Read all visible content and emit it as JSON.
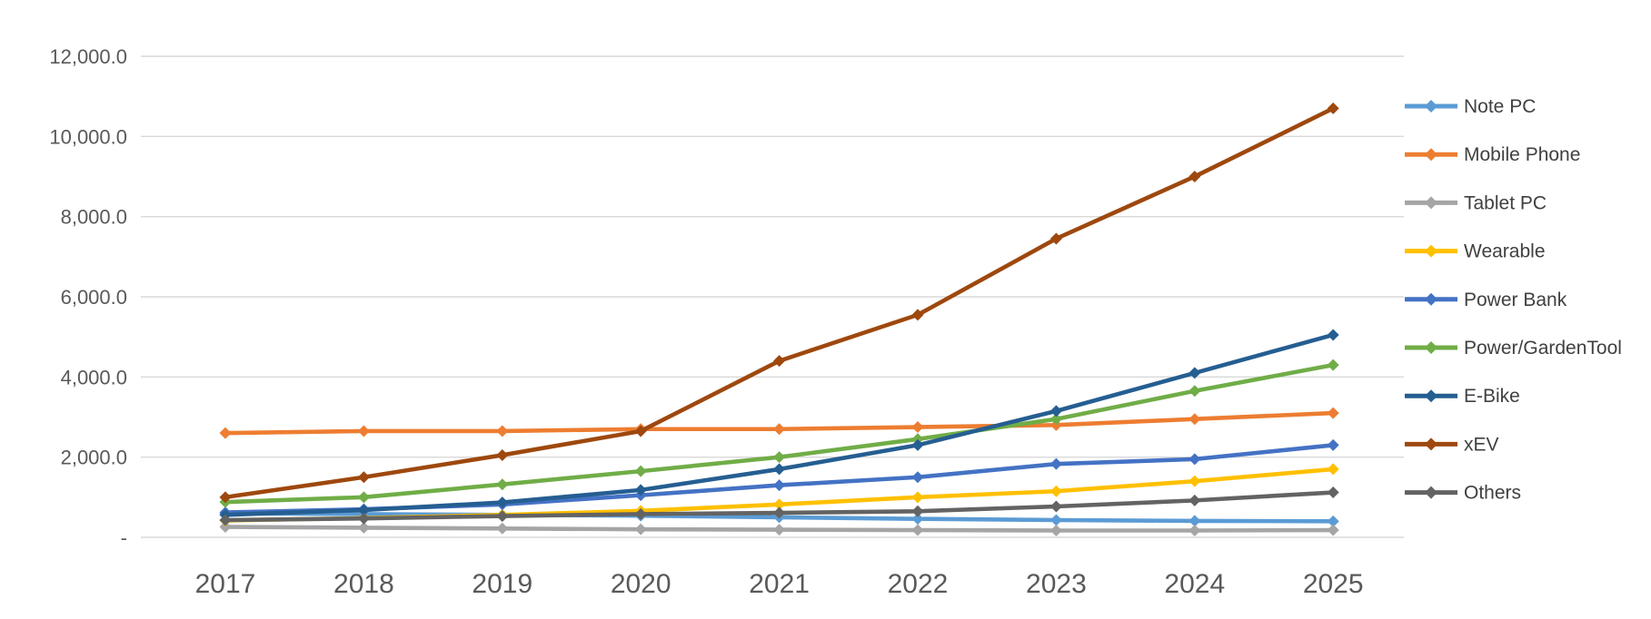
{
  "chart_data": {
    "type": "line",
    "title": "",
    "categories": [
      "2017",
      "2018",
      "2019",
      "2020",
      "2021",
      "2022",
      "2023",
      "2024",
      "2025"
    ],
    "series": [
      {
        "name": "Note PC",
        "color": "#5B9BD5",
        "values": [
          600,
          580,
          560,
          540,
          500,
          460,
          430,
          410,
          400
        ]
      },
      {
        "name": "Mobile Phone",
        "color": "#ED7D31",
        "values": [
          2600,
          2650,
          2650,
          2700,
          2700,
          2750,
          2800,
          2950,
          3100
        ]
      },
      {
        "name": "Tablet PC",
        "color": "#A5A5A5",
        "values": [
          260,
          240,
          220,
          200,
          190,
          180,
          170,
          170,
          180
        ]
      },
      {
        "name": "Wearable",
        "color": "#FFC000",
        "values": [
          420,
          480,
          560,
          660,
          820,
          1000,
          1150,
          1400,
          1700
        ]
      },
      {
        "name": "Power Bank",
        "color": "#4472C4",
        "values": [
          620,
          700,
          820,
          1050,
          1300,
          1500,
          1830,
          1950,
          2300
        ]
      },
      {
        "name": "Power/GardenTool",
        "color": "#70AD47",
        "values": [
          880,
          1000,
          1320,
          1650,
          2000,
          2450,
          2950,
          3650,
          4300
        ]
      },
      {
        "name": "E-Bike",
        "color": "#255E91",
        "values": [
          560,
          680,
          870,
          1180,
          1700,
          2300,
          3150,
          4100,
          5050
        ]
      },
      {
        "name": "xEV",
        "color": "#9E480E",
        "values": [
          1000,
          1500,
          2050,
          2650,
          4400,
          5550,
          7450,
          9000,
          10700
        ]
      },
      {
        "name": "Others",
        "color": "#636363",
        "values": [
          430,
          470,
          530,
          580,
          610,
          650,
          770,
          920,
          1120
        ]
      }
    ],
    "y_axis": {
      "min": 0,
      "max": 12000,
      "step": 2000,
      "tick_labels_top_to_bottom": [
        "12,000.0",
        "10,000.0",
        "8,000.0",
        "6,000.0",
        "4,000.0",
        "2,000.0",
        "-"
      ]
    },
    "x_axis": {
      "tick_labels": [
        "2017",
        "2018",
        "2019",
        "2020",
        "2021",
        "2022",
        "2023",
        "2024",
        "2025"
      ]
    },
    "legend_position": "right",
    "grid": true,
    "colors": {
      "gridline": "#D9D9D9",
      "y_tick_text": "#595959",
      "x_tick_text": "#595959",
      "legend_text": "#404040",
      "background": "#FFFFFF"
    }
  }
}
